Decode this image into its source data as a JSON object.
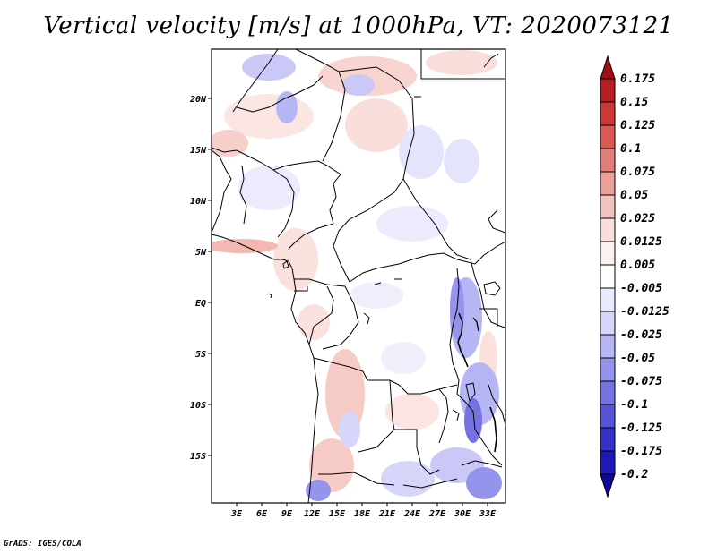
{
  "title": "Vertical velocity [m/s] at 1000hPa, VT: 2020073121",
  "credit": "GrADS: IGES/COLA",
  "map": {
    "lat_labels": [
      "20N",
      "15N",
      "10N",
      "5N",
      "EQ",
      "5S",
      "10S",
      "15S"
    ],
    "lon_labels": [
      "3E",
      "6E",
      "9E",
      "12E",
      "15E",
      "18E",
      "21E",
      "24E",
      "27E",
      "30E",
      "33E"
    ]
  },
  "colorbar": {
    "labels": [
      "0.175",
      "0.15",
      "0.125",
      "0.1",
      "0.075",
      "0.05",
      "0.025",
      "0.0125",
      "0.005",
      "-0.005",
      "-0.0125",
      "-0.025",
      "-0.05",
      "-0.075",
      "-0.1",
      "-0.125",
      "-0.175",
      "-0.2"
    ],
    "colors": [
      "#9e0f14",
      "#b4201f",
      "#c93a35",
      "#d85a55",
      "#e27e78",
      "#eca09a",
      "#f4c3bf",
      "#f9dedb",
      "#fdf1ef",
      "#ffffff",
      "#eaeaff",
      "#d6d6fa",
      "#b7b6f4",
      "#9594ec",
      "#7573e2",
      "#5553d6",
      "#3530c6",
      "#1e18b4",
      "#10089a"
    ]
  }
}
